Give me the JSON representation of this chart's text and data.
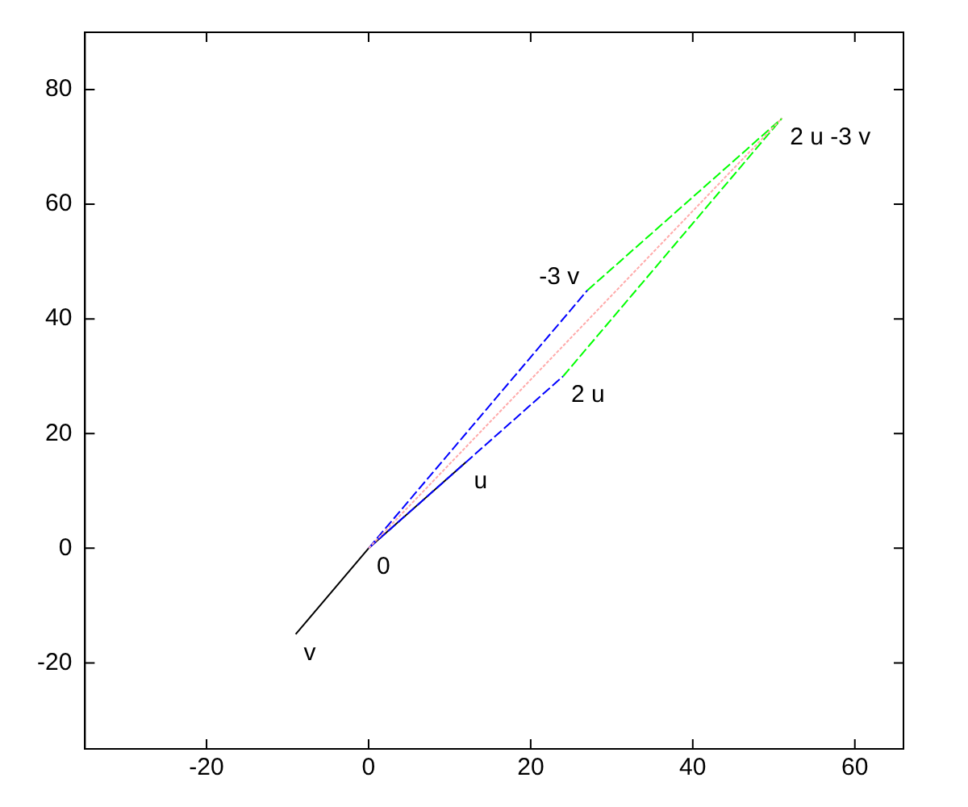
{
  "chart_data": {
    "type": "line",
    "xlim": [
      -35,
      66
    ],
    "ylim": [
      -35,
      90
    ],
    "xticks": [
      -20,
      0,
      20,
      40,
      60
    ],
    "yticks": [
      -20,
      0,
      20,
      40,
      60,
      80
    ],
    "grid": false,
    "legend": false,
    "marker": "none",
    "series": [
      {
        "color": "#000000",
        "x": [
          -9,
          0,
          12
        ],
        "values": [
          -15,
          0,
          15
        ],
        "line_style": "solid"
      },
      {
        "color": "#0000ff",
        "x": [
          0,
          24
        ],
        "values": [
          0,
          30
        ],
        "line_style": "dashed"
      },
      {
        "color": "#0000ff",
        "x": [
          0,
          27
        ],
        "values": [
          0,
          45
        ],
        "line_style": "dashed"
      },
      {
        "color": "#00ff00",
        "x": [
          24,
          51
        ],
        "values": [
          30,
          75
        ],
        "line_style": "dashed"
      },
      {
        "color": "#00ff00",
        "x": [
          27,
          51
        ],
        "values": [
          45,
          75
        ],
        "line_style": "dashed"
      },
      {
        "color": "#ffaaaa",
        "x": [
          0,
          51
        ],
        "values": [
          0,
          75
        ],
        "line_style": "dotted"
      }
    ],
    "annotations": [
      {
        "text": "0",
        "x": 0,
        "y": 0
      },
      {
        "text": "u",
        "x": 12,
        "y": 15
      },
      {
        "text": "v",
        "x": -9,
        "y": -15
      },
      {
        "text": "2 u",
        "x": 24,
        "y": 30
      },
      {
        "text": "-3 v",
        "x": 27,
        "y": 45
      },
      {
        "text": "2 u -3 v",
        "x": 51,
        "y": 75
      }
    ]
  }
}
